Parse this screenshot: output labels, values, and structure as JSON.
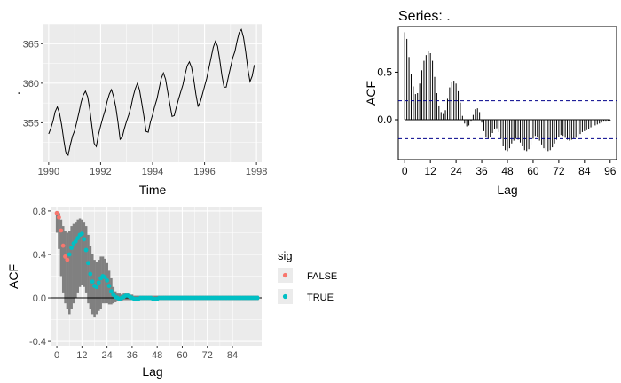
{
  "chart_data": [
    {
      "type": "line",
      "title": "",
      "xlabel": "Time",
      "ylabel": ".",
      "xlim": [
        1989.8,
        1998.2
      ],
      "ylim": [
        350,
        367.5
      ],
      "x_ticks": [
        1990,
        1992,
        1994,
        1996,
        1998
      ],
      "y_ticks": [
        355,
        360,
        365
      ],
      "grid": true,
      "line_color": "#000000",
      "series": [
        {
          "x": [
            1990.0,
            1990.083,
            1990.167,
            1990.25,
            1990.333,
            1990.417,
            1990.5,
            1990.583,
            1990.667,
            1990.75,
            1990.833,
            1990.917,
            1991.0,
            1991.083,
            1991.167,
            1991.25,
            1991.333,
            1991.417,
            1991.5,
            1991.583,
            1991.667,
            1991.75,
            1991.833,
            1991.917,
            1992.0,
            1992.083,
            1992.167,
            1992.25,
            1992.333,
            1992.417,
            1992.5,
            1992.583,
            1992.667,
            1992.75,
            1992.833,
            1992.917,
            1993.0,
            1993.083,
            1993.167,
            1993.25,
            1993.333,
            1993.417,
            1993.5,
            1993.583,
            1993.667,
            1993.75,
            1993.833,
            1993.917,
            1994.0,
            1994.083,
            1994.167,
            1994.25,
            1994.333,
            1994.417,
            1994.5,
            1994.583,
            1994.667,
            1994.75,
            1994.833,
            1994.917,
            1995.0,
            1995.083,
            1995.167,
            1995.25,
            1995.333,
            1995.417,
            1995.5,
            1995.583,
            1995.667,
            1995.75,
            1995.833,
            1995.917,
            1996.0,
            1996.083,
            1996.167,
            1996.25,
            1996.333,
            1996.417,
            1996.5,
            1996.583,
            1996.667,
            1996.75,
            1996.833,
            1996.917,
            1997.0,
            1997.083,
            1997.167,
            1997.25,
            1997.333,
            1997.417,
            1997.5,
            1997.583,
            1997.667,
            1997.75,
            1997.833,
            1997.917
          ],
          "values": [
            353.6,
            354.3,
            355.2,
            356.4,
            357.0,
            356.2,
            354.7,
            352.8,
            351.1,
            350.9,
            352.2,
            353.3,
            354.0,
            355.1,
            356.3,
            357.6,
            358.5,
            359.0,
            358.3,
            356.7,
            354.5,
            352.4,
            352.0,
            353.5,
            354.6,
            355.6,
            356.5,
            357.7,
            358.6,
            359.2,
            358.3,
            357.0,
            355.1,
            352.9,
            353.2,
            354.3,
            355.2,
            356.0,
            357.0,
            358.3,
            359.3,
            360.0,
            359.1,
            357.5,
            355.8,
            353.9,
            353.8,
            355.1,
            356.0,
            357.1,
            358.0,
            359.3,
            360.6,
            361.3,
            360.5,
            358.9,
            357.3,
            355.8,
            355.9,
            357.0,
            358.0,
            358.9,
            359.8,
            361.1,
            362.2,
            362.7,
            362.0,
            360.5,
            358.6,
            357.1,
            357.6,
            358.6,
            359.6,
            360.6,
            361.9,
            363.2,
            364.5,
            365.3,
            364.7,
            363.0,
            361.0,
            359.5,
            359.5,
            360.8,
            362.0,
            363.2,
            364.0,
            365.3,
            366.4,
            366.8,
            365.8,
            364.0,
            361.8,
            360.2,
            360.9,
            362.3
          ]
        }
      ]
    },
    {
      "type": "bar",
      "title": "Series: .",
      "xlabel": "Lag",
      "ylabel": "ACF",
      "xlim": [
        -3,
        99
      ],
      "ylim": [
        -0.42,
        0.98
      ],
      "x_ticks": [
        0,
        12,
        24,
        36,
        48,
        60,
        72,
        84,
        96
      ],
      "y_ticks": [
        0.0,
        0.5
      ],
      "confidence_band": [
        0.2,
        -0.2
      ],
      "band_color": "#00008b",
      "grid": false,
      "lags": [
        0,
        1,
        2,
        3,
        4,
        5,
        6,
        7,
        8,
        9,
        10,
        11,
        12,
        13,
        14,
        15,
        16,
        17,
        18,
        19,
        20,
        21,
        22,
        23,
        24,
        25,
        26,
        27,
        28,
        29,
        30,
        31,
        32,
        33,
        34,
        35,
        36,
        37,
        38,
        39,
        40,
        41,
        42,
        43,
        44,
        45,
        46,
        47,
        48,
        49,
        50,
        51,
        52,
        53,
        54,
        55,
        56,
        57,
        58,
        59,
        60,
        61,
        62,
        63,
        64,
        65,
        66,
        67,
        68,
        69,
        70,
        71,
        72,
        73,
        74,
        75,
        76,
        77,
        78,
        79,
        80,
        81,
        82,
        83,
        84,
        85,
        86,
        87,
        88,
        89,
        90,
        91,
        92,
        93,
        94,
        95,
        96
      ],
      "values": [
        0.92,
        0.85,
        0.66,
        0.48,
        0.35,
        0.27,
        0.28,
        0.38,
        0.52,
        0.62,
        0.68,
        0.72,
        0.7,
        0.62,
        0.45,
        0.28,
        0.15,
        0.08,
        0.06,
        0.1,
        0.22,
        0.34,
        0.4,
        0.41,
        0.38,
        0.3,
        0.18,
        0.04,
        -0.04,
        -0.07,
        -0.06,
        -0.02,
        0.05,
        0.11,
        0.12,
        0.08,
        -0.03,
        -0.12,
        -0.18,
        -0.2,
        -0.18,
        -0.14,
        -0.1,
        -0.09,
        -0.13,
        -0.2,
        -0.28,
        -0.32,
        -0.33,
        -0.3,
        -0.25,
        -0.22,
        -0.2,
        -0.21,
        -0.24,
        -0.28,
        -0.32,
        -0.33,
        -0.31,
        -0.26,
        -0.2,
        -0.17,
        -0.18,
        -0.22,
        -0.26,
        -0.3,
        -0.32,
        -0.33,
        -0.32,
        -0.29,
        -0.25,
        -0.21,
        -0.18,
        -0.16,
        -0.17,
        -0.19,
        -0.21,
        -0.22,
        -0.21,
        -0.2,
        -0.19,
        -0.17,
        -0.15,
        -0.13,
        -0.12,
        -0.11,
        -0.1,
        -0.08,
        -0.07,
        -0.06,
        -0.05,
        -0.04,
        -0.03,
        -0.02,
        -0.02,
        -0.01,
        -0.01
      ]
    },
    {
      "type": "bar",
      "title": "",
      "xlabel": "Lag",
      "ylabel": "ACF",
      "xlim": [
        -3,
        98
      ],
      "ylim": [
        -0.44,
        0.84
      ],
      "x_ticks": [
        0,
        12,
        24,
        36,
        48,
        60,
        72,
        84
      ],
      "y_ticks": [
        -0.4,
        0.0,
        0.4,
        0.8
      ],
      "grid": true,
      "bar_color": "#808080",
      "legend": {
        "title": "sig",
        "position": "right",
        "entries": [
          {
            "label": "FALSE",
            "color": "#F8766D"
          },
          {
            "label": "TRUE",
            "color": "#00BFC4"
          }
        ]
      },
      "lags": [
        0,
        1,
        2,
        3,
        4,
        5,
        6,
        7,
        8,
        9,
        10,
        11,
        12,
        13,
        14,
        15,
        16,
        17,
        18,
        19,
        20,
        21,
        22,
        23,
        24,
        25,
        26,
        27,
        28,
        29,
        30,
        31,
        32,
        33,
        34,
        35,
        36,
        37,
        38,
        39,
        40,
        41,
        42,
        43,
        44,
        45,
        46,
        47,
        48,
        49,
        50,
        51,
        52,
        53,
        54,
        55,
        56,
        57,
        58,
        59,
        60,
        61,
        62,
        63,
        64,
        65,
        66,
        67,
        68,
        69,
        70,
        71,
        72,
        73,
        74,
        75,
        76,
        77,
        78,
        79,
        80,
        81,
        82,
        83,
        84,
        85,
        86,
        87,
        88,
        89,
        90,
        91,
        92,
        93,
        94,
        95,
        96
      ],
      "acf": [
        0.78,
        0.74,
        0.62,
        0.48,
        0.38,
        0.35,
        0.4,
        0.46,
        0.5,
        0.52,
        0.55,
        0.58,
        0.59,
        0.54,
        0.44,
        0.32,
        0.22,
        0.15,
        0.11,
        0.1,
        0.14,
        0.18,
        0.2,
        0.19,
        0.16,
        0.11,
        0.06,
        0.03,
        0.01,
        0.0,
        -0.01,
        0.0,
        0.01,
        0.02,
        0.02,
        0.01,
        0.0,
        -0.01,
        -0.01,
        -0.01,
        0.0,
        0.0,
        0.0,
        0.0,
        0.0,
        0.0,
        -0.01,
        -0.01,
        -0.01,
        0.0,
        0.0,
        0.0,
        0.0,
        0.0,
        0.0,
        0.0,
        0.0,
        0.0,
        0.0,
        0.0,
        0.0,
        0.0,
        0.0,
        0.0,
        0.0,
        0.0,
        0.0,
        0.0,
        0.0,
        0.0,
        0.0,
        0.0,
        0.0,
        0.0,
        0.0,
        0.0,
        0.0,
        0.0,
        0.0,
        0.0,
        0.0,
        0.0,
        0.0,
        0.0,
        0.0,
        0.0,
        0.0,
        0.0,
        0.0,
        0.0,
        0.0,
        0.0,
        0.0,
        0.0,
        0.0,
        0.0,
        0.0
      ],
      "lower": [
        0.6,
        0.45,
        0.2,
        0.05,
        -0.05,
        -0.1,
        -0.15,
        -0.1,
        -0.05,
        0.0,
        0.05,
        0.1,
        0.12,
        0.1,
        0.05,
        -0.05,
        -0.1,
        -0.15,
        -0.18,
        -0.15,
        -0.12,
        -0.1,
        -0.05,
        -0.05,
        -0.05,
        -0.06,
        -0.06,
        -0.05,
        -0.04,
        -0.03,
        -0.03,
        -0.03,
        -0.02,
        -0.02,
        -0.02,
        -0.02,
        -0.02,
        -0.02,
        -0.02,
        -0.02,
        -0.02,
        -0.02,
        -0.02,
        -0.02,
        -0.02,
        -0.02,
        -0.02,
        -0.02,
        -0.02,
        -0.02,
        -0.02,
        -0.02,
        -0.02,
        -0.02,
        -0.02,
        -0.02,
        -0.02,
        -0.02,
        -0.02,
        -0.02,
        -0.02,
        -0.02,
        -0.02,
        -0.02,
        -0.02,
        -0.02,
        -0.02,
        -0.02,
        -0.02,
        -0.02,
        -0.02,
        -0.02,
        -0.02,
        -0.02,
        -0.02,
        -0.02,
        -0.02,
        -0.02,
        -0.02,
        -0.02,
        -0.02,
        -0.02,
        -0.02,
        -0.02,
        -0.02,
        -0.02,
        -0.02,
        -0.02,
        -0.02,
        -0.02,
        -0.02,
        -0.02,
        -0.02,
        -0.02,
        -0.02,
        -0.02,
        -0.02
      ],
      "upper": [
        0.8,
        0.78,
        0.72,
        0.66,
        0.62,
        0.6,
        0.62,
        0.66,
        0.68,
        0.7,
        0.72,
        0.73,
        0.72,
        0.7,
        0.66,
        0.58,
        0.48,
        0.4,
        0.35,
        0.33,
        0.35,
        0.38,
        0.38,
        0.36,
        0.32,
        0.25,
        0.18,
        0.1,
        0.06,
        0.04,
        0.04,
        0.03,
        0.04,
        0.04,
        0.04,
        0.03,
        0.03,
        0.02,
        0.02,
        0.02,
        0.02,
        0.02,
        0.02,
        0.02,
        0.02,
        0.02,
        0.02,
        0.02,
        0.02,
        0.02,
        0.02,
        0.02,
        0.02,
        0.02,
        0.02,
        0.02,
        0.02,
        0.02,
        0.02,
        0.02,
        0.02,
        0.02,
        0.02,
        0.02,
        0.02,
        0.02,
        0.02,
        0.02,
        0.02,
        0.02,
        0.02,
        0.02,
        0.02,
        0.02,
        0.02,
        0.02,
        0.02,
        0.02,
        0.02,
        0.02,
        0.02,
        0.02,
        0.02,
        0.02,
        0.02,
        0.02,
        0.02,
        0.02,
        0.02,
        0.02,
        0.02,
        0.02,
        0.02,
        0.02,
        0.02,
        0.02,
        0.02
      ],
      "sig": [
        "FALSE",
        "FALSE",
        "FALSE",
        "FALSE",
        "FALSE",
        "FALSE",
        "TRUE",
        "TRUE",
        "TRUE",
        "TRUE",
        "TRUE",
        "TRUE",
        "TRUE",
        "TRUE",
        "TRUE",
        "TRUE",
        "TRUE",
        "TRUE",
        "TRUE",
        "TRUE",
        "TRUE",
        "TRUE",
        "TRUE",
        "TRUE",
        "TRUE",
        "TRUE",
        "TRUE",
        "TRUE",
        "TRUE",
        "TRUE",
        "TRUE",
        "TRUE",
        "TRUE",
        "TRUE",
        "TRUE",
        "TRUE",
        "TRUE",
        "TRUE",
        "TRUE",
        "TRUE",
        "TRUE",
        "TRUE",
        "TRUE",
        "TRUE",
        "TRUE",
        "TRUE",
        "TRUE",
        "TRUE",
        "TRUE",
        "TRUE",
        "TRUE",
        "TRUE",
        "TRUE",
        "TRUE",
        "TRUE",
        "TRUE",
        "TRUE",
        "TRUE",
        "TRUE",
        "TRUE",
        "TRUE",
        "TRUE",
        "TRUE",
        "TRUE",
        "TRUE",
        "TRUE",
        "TRUE",
        "TRUE",
        "TRUE",
        "TRUE",
        "TRUE",
        "TRUE",
        "TRUE",
        "TRUE",
        "TRUE",
        "TRUE",
        "TRUE",
        "TRUE",
        "TRUE",
        "TRUE",
        "TRUE",
        "TRUE",
        "TRUE",
        "TRUE",
        "TRUE",
        "TRUE",
        "TRUE",
        "TRUE",
        "TRUE",
        "TRUE",
        "TRUE",
        "TRUE",
        "TRUE",
        "TRUE",
        "TRUE",
        "TRUE",
        "TRUE"
      ]
    }
  ]
}
